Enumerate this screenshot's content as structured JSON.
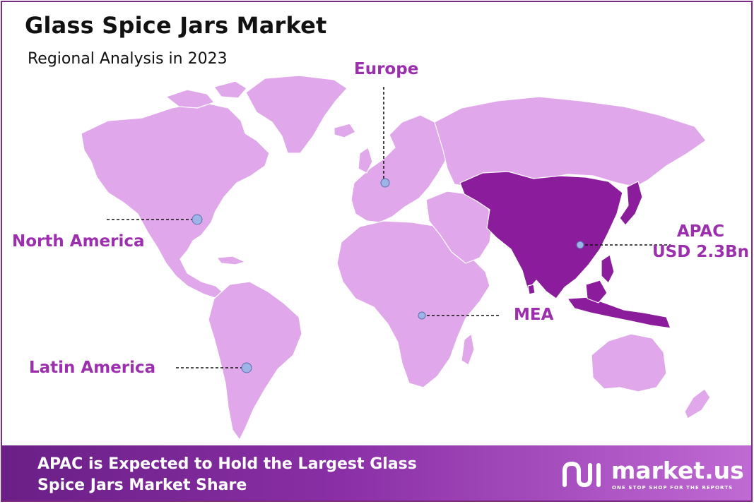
{
  "header": {
    "title": "Glass Spice Jars Market",
    "subtitle": "Regional Analysis in 2023"
  },
  "regions": {
    "europe": "Europe",
    "north_america": "North America",
    "apac_name": "APAC",
    "apac_value": "USD 2.3Bn",
    "mea": "MEA",
    "latin_america": "Latin America"
  },
  "colors": {
    "land": "#e0a8ea",
    "highlight": "#8b1c9c",
    "accent_text": "#9b2fae",
    "marker": "#9fb4e6"
  },
  "highlighted_region": "APAC",
  "banner": {
    "text": "APAC is Expected to Hold the Largest Glass Spice Jars Market Share"
  },
  "brand": {
    "name": "market.us",
    "tagline": "ONE STOP SHOP FOR THE REPORTS",
    "icon": "market-us-logo-icon"
  }
}
